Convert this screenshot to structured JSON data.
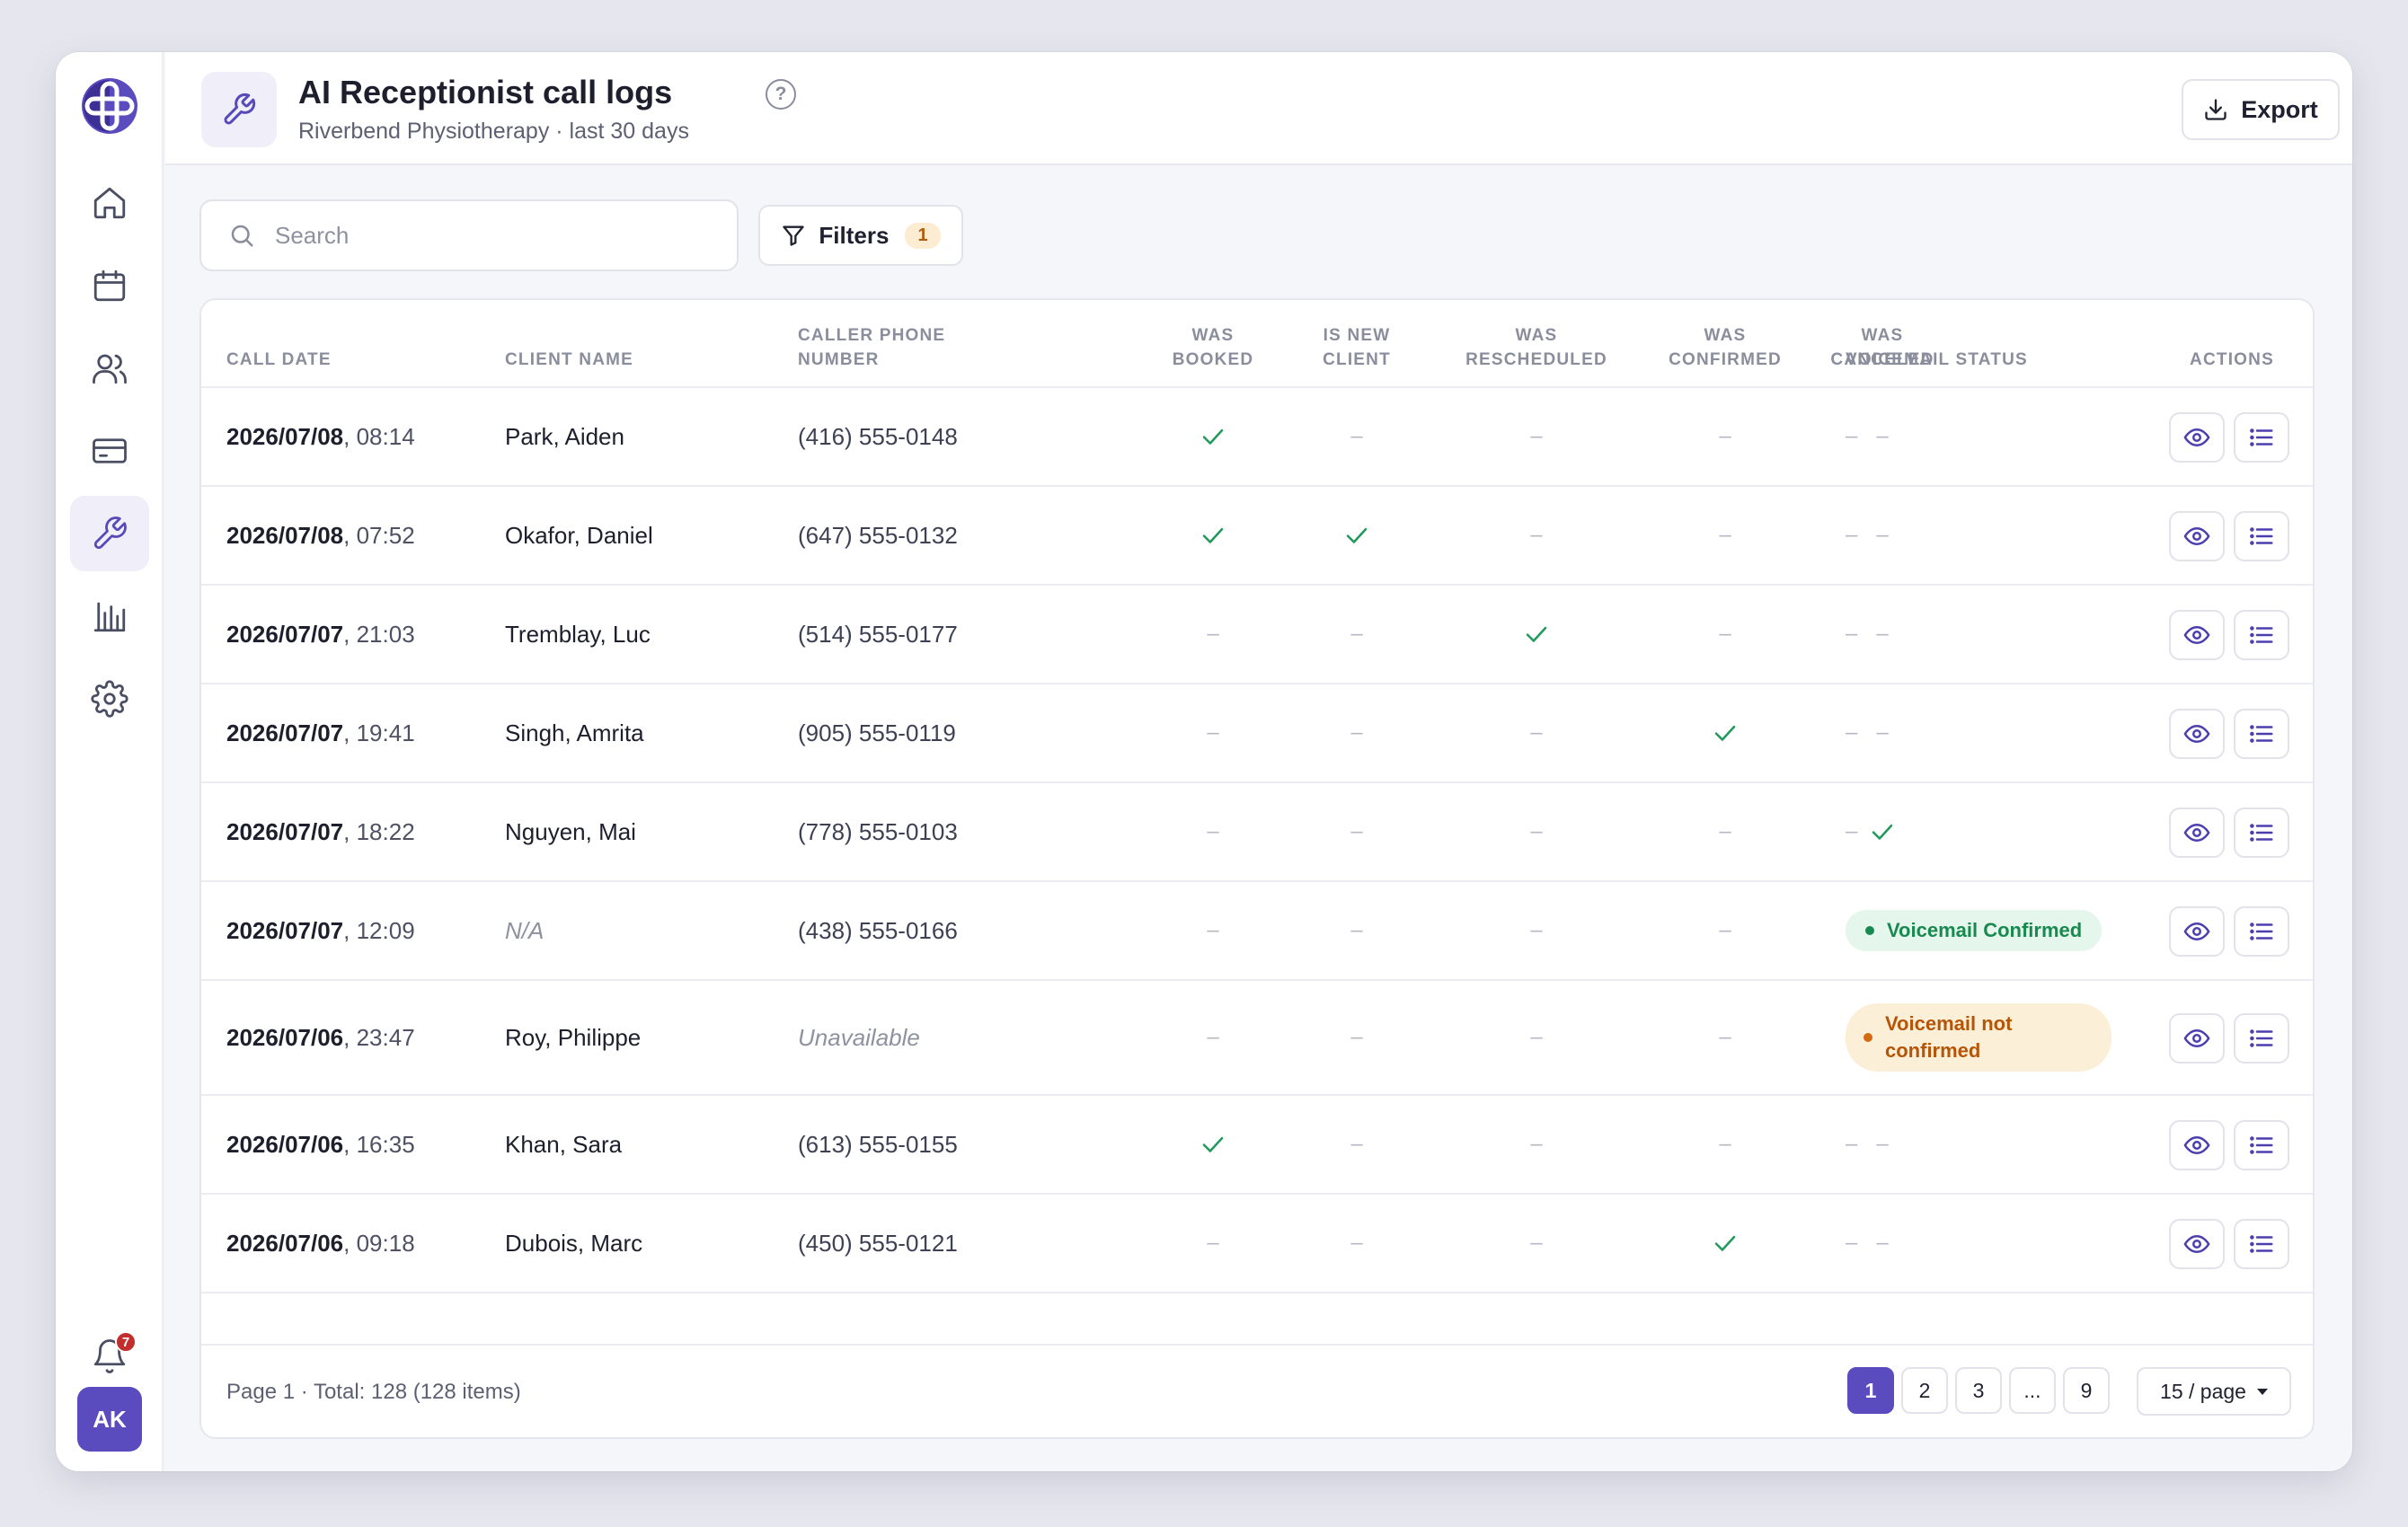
{
  "header": {
    "title": "AI Receptionist call logs",
    "subtitle": "Riverbend Physiotherapy · last 30 days",
    "export_label": "Export"
  },
  "toolbar": {
    "search_placeholder": "Search",
    "filters_label": "Filters",
    "filters_count": "1"
  },
  "sidebar": {
    "items": [
      {
        "icon": "home-icon",
        "active": false
      },
      {
        "icon": "calendar-icon",
        "active": false
      },
      {
        "icon": "users-icon",
        "active": false
      },
      {
        "icon": "billing-card-icon",
        "active": false
      },
      {
        "icon": "wrench-icon",
        "active": true
      },
      {
        "icon": "chart-icon",
        "active": false
      },
      {
        "icon": "gear-icon",
        "active": false
      }
    ],
    "notifications_count": "7",
    "avatar_initials": "AK"
  },
  "table": {
    "columns": [
      "Call date",
      "Client name",
      "Caller phone number",
      "Was booked",
      "Is new client",
      "Was rescheduled",
      "Was confirmed",
      "Was canceled",
      "Voicemail status",
      "Actions"
    ],
    "rows": [
      {
        "date": "2026/07/08",
        "time": ", 08:14",
        "client": "Park, Aiden",
        "client_missing": false,
        "phone": "(416) 555-0148",
        "phone_missing": false,
        "booked": true,
        "new_client": false,
        "rescheduled": false,
        "confirmed": false,
        "canceled": false,
        "voicemail": null,
        "voicemail_text": "–"
      },
      {
        "date": "2026/07/08",
        "time": ", 07:52",
        "client": "Okafor, Daniel",
        "client_missing": false,
        "phone": "(647) 555-0132",
        "phone_missing": false,
        "booked": true,
        "new_client": true,
        "rescheduled": false,
        "confirmed": false,
        "canceled": false,
        "voicemail": null,
        "voicemail_text": "–"
      },
      {
        "date": "2026/07/07",
        "time": ", 21:03",
        "client": "Tremblay, Luc",
        "client_missing": false,
        "phone": "(514) 555-0177",
        "phone_missing": false,
        "booked": false,
        "new_client": false,
        "rescheduled": true,
        "confirmed": false,
        "canceled": false,
        "voicemail": null,
        "voicemail_text": "–"
      },
      {
        "date": "2026/07/07",
        "time": ", 19:41",
        "client": "Singh, Amrita",
        "client_missing": false,
        "phone": "(905) 555-0119",
        "phone_missing": false,
        "booked": false,
        "new_client": false,
        "rescheduled": false,
        "confirmed": true,
        "canceled": false,
        "voicemail": null,
        "voicemail_text": "–"
      },
      {
        "date": "2026/07/07",
        "time": ", 18:22",
        "client": "Nguyen, Mai",
        "client_missing": false,
        "phone": "(778) 555-0103",
        "phone_missing": false,
        "booked": false,
        "new_client": false,
        "rescheduled": false,
        "confirmed": false,
        "canceled": true,
        "voicemail": null,
        "voicemail_text": "–"
      },
      {
        "date": "2026/07/07",
        "time": ", 12:09",
        "client": "N/A",
        "client_missing": true,
        "phone": "(438) 555-0166",
        "phone_missing": false,
        "booked": false,
        "new_client": false,
        "rescheduled": false,
        "confirmed": false,
        "canceled": false,
        "voicemail": "ok",
        "voicemail_text": "Voicemail Confirmed"
      },
      {
        "date": "2026/07/06",
        "time": ", 23:47",
        "client": "Roy, Philippe",
        "client_missing": false,
        "phone": "Unavailable",
        "phone_missing": true,
        "booked": false,
        "new_client": false,
        "rescheduled": false,
        "confirmed": false,
        "canceled": false,
        "voicemail": "no",
        "voicemail_text": "Voicemail not confirmed"
      },
      {
        "date": "2026/07/06",
        "time": ", 16:35",
        "client": "Khan, Sara",
        "client_missing": false,
        "phone": "(613) 555-0155",
        "phone_missing": false,
        "booked": true,
        "new_client": false,
        "rescheduled": false,
        "confirmed": false,
        "canceled": false,
        "voicemail": null,
        "voicemail_text": "–"
      },
      {
        "date": "2026/07/06",
        "time": ", 09:18",
        "client": "Dubois, Marc",
        "client_missing": false,
        "phone": "(450) 555-0121",
        "phone_missing": false,
        "booked": false,
        "new_client": false,
        "rescheduled": false,
        "confirmed": true,
        "canceled": false,
        "voicemail": null,
        "voicemail_text": "–"
      }
    ],
    "empty_mark": "–"
  },
  "pagination": {
    "info": "Page 1 · Total: 128 (128 items)",
    "pages": [
      "1",
      "2",
      "3",
      "...",
      "9"
    ],
    "current": "1",
    "per_page": "15 / page"
  },
  "colors": {
    "accent": "#5a4bbf",
    "success": "#1f9a5a",
    "warning": "#b55507"
  }
}
